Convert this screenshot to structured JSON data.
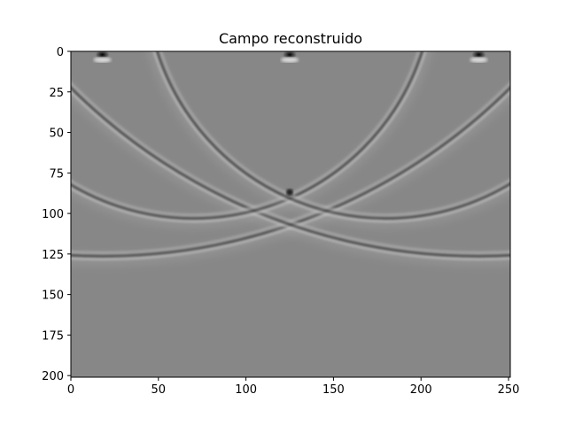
{
  "chart_data": {
    "type": "heatmap",
    "title": "Campo reconstruido",
    "xlabel": "",
    "ylabel": "",
    "xlim": [
      0,
      251
    ],
    "ylim": [
      201,
      0
    ],
    "x_ticks": [
      "0",
      "50",
      "100",
      "150",
      "200",
      "250"
    ],
    "y_ticks": [
      "0",
      "25",
      "50",
      "75",
      "100",
      "125",
      "150",
      "175",
      "200"
    ],
    "colormap": "gray",
    "background_value_color": "#878787",
    "features": [
      {
        "name": "left source",
        "x": 18,
        "y": 2
      },
      {
        "name": "center source",
        "x": 125,
        "y": 2
      },
      {
        "name": "right source",
        "x": 233,
        "y": 2
      },
      {
        "name": "wavefront crossing",
        "x": 125,
        "y": 87
      }
    ],
    "wavefront_circles": [
      {
        "cx": 18,
        "cy": -230,
        "r": 330
      },
      {
        "cx": 233,
        "cy": -230,
        "r": 330
      },
      {
        "cx": 70,
        "cy": -45,
        "r": 137
      },
      {
        "cx": 180,
        "cy": -45,
        "r": 137
      }
    ],
    "grid": false
  }
}
